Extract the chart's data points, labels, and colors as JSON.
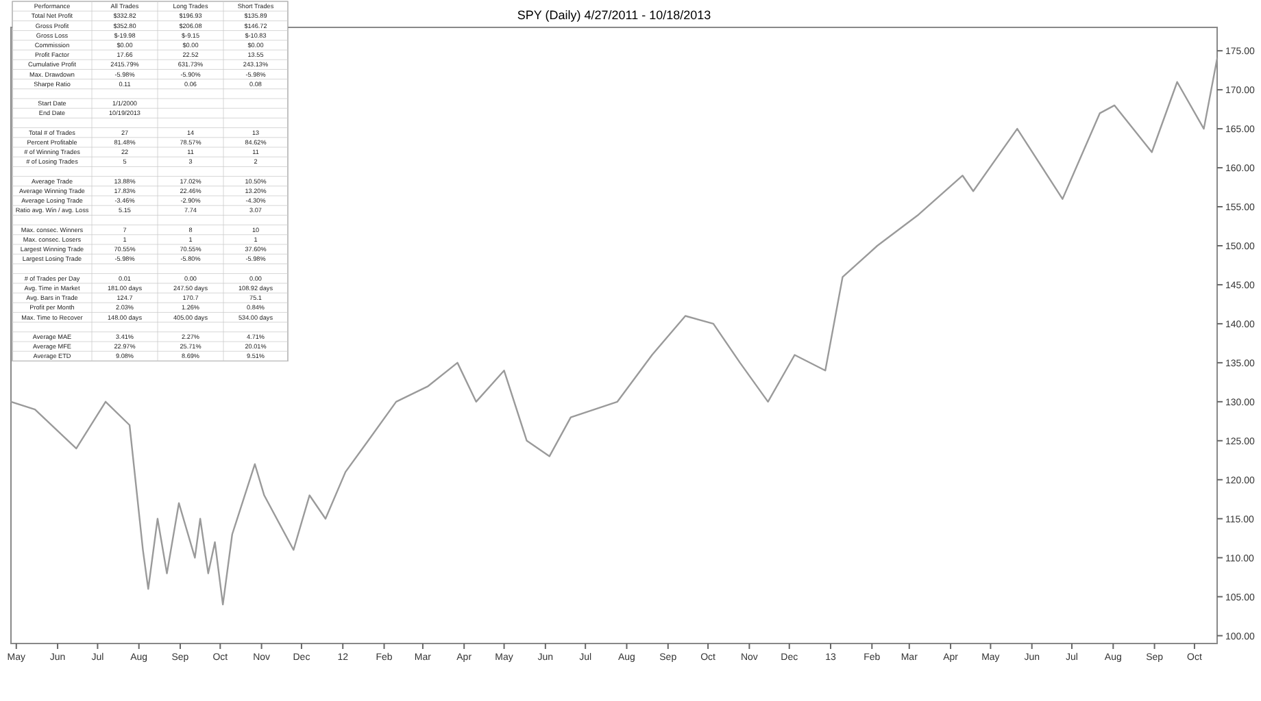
{
  "chart_data": [
    {
      "type": "line",
      "title": "SPY (Daily)  4/27/2011 - 10/18/2013",
      "grid": false,
      "marker": "none",
      "line_style": "solid",
      "series": [
        {
          "color": "#9a9a9a",
          "x": [
            "2011-04-27",
            "2011-05-15",
            "2011-06-15",
            "2011-07-07",
            "2011-07-25",
            "2011-08-04",
            "2011-08-08",
            "2011-08-15",
            "2011-08-22",
            "2011-08-31",
            "2011-09-12",
            "2011-09-16",
            "2011-09-22",
            "2011-09-27",
            "2011-10-03",
            "2011-10-10",
            "2011-10-27",
            "2011-11-03",
            "2011-11-25",
            "2011-12-07",
            "2011-12-19",
            "2012-01-03",
            "2012-01-20",
            "2012-02-10",
            "2012-03-05",
            "2012-03-27",
            "2012-04-10",
            "2012-05-01",
            "2012-05-18",
            "2012-06-04",
            "2012-06-20",
            "2012-07-25",
            "2012-08-20",
            "2012-09-14",
            "2012-10-05",
            "2012-10-25",
            "2012-11-15",
            "2012-12-05",
            "2012-12-28",
            "2013-01-10",
            "2013-02-05",
            "2013-03-08",
            "2013-04-10",
            "2013-04-18",
            "2013-05-21",
            "2013-06-24",
            "2013-07-22",
            "2013-08-02",
            "2013-08-30",
            "2013-09-18",
            "2013-10-08",
            "2013-10-18"
          ],
          "values": [
            130,
            129,
            124,
            130,
            127,
            111,
            106,
            115,
            108,
            117,
            110,
            115,
            108,
            112,
            104,
            113,
            122,
            118,
            111,
            118,
            115,
            121,
            125,
            130,
            132,
            135,
            130,
            134,
            125,
            123,
            128,
            130,
            136,
            141,
            140,
            135,
            130,
            136,
            134,
            146,
            150,
            154,
            159,
            157,
            165,
            156,
            167,
            168,
            162,
            171,
            165,
            174
          ]
        }
      ],
      "xlim": [
        "2011-04-27",
        "2013-10-18"
      ],
      "xticks": [
        {
          "value": "2011-05-01",
          "label": "May"
        },
        {
          "value": "2011-06-01",
          "label": "Jun"
        },
        {
          "value": "2011-07-01",
          "label": "Jul"
        },
        {
          "value": "2011-08-01",
          "label": "Aug"
        },
        {
          "value": "2011-09-01",
          "label": "Sep"
        },
        {
          "value": "2011-10-01",
          "label": "Oct"
        },
        {
          "value": "2011-11-01",
          "label": "Nov"
        },
        {
          "value": "2011-12-01",
          "label": "Dec"
        },
        {
          "value": "2012-01-01",
          "label": "12"
        },
        {
          "value": "2012-02-01",
          "label": "Feb"
        },
        {
          "value": "2012-03-01",
          "label": "Mar"
        },
        {
          "value": "2012-04-01",
          "label": "Apr"
        },
        {
          "value": "2012-05-01",
          "label": "May"
        },
        {
          "value": "2012-06-01",
          "label": "Jun"
        },
        {
          "value": "2012-07-01",
          "label": "Jul"
        },
        {
          "value": "2012-08-01",
          "label": "Aug"
        },
        {
          "value": "2012-09-01",
          "label": "Sep"
        },
        {
          "value": "2012-10-01",
          "label": "Oct"
        },
        {
          "value": "2012-11-01",
          "label": "Nov"
        },
        {
          "value": "2012-12-01",
          "label": "Dec"
        },
        {
          "value": "2013-01-01",
          "label": "13"
        },
        {
          "value": "2013-02-01",
          "label": "Feb"
        },
        {
          "value": "2013-03-01",
          "label": "Mar"
        },
        {
          "value": "2013-04-01",
          "label": "Apr"
        },
        {
          "value": "2013-05-01",
          "label": "May"
        },
        {
          "value": "2013-06-01",
          "label": "Jun"
        },
        {
          "value": "2013-07-01",
          "label": "Jul"
        },
        {
          "value": "2013-08-01",
          "label": "Aug"
        },
        {
          "value": "2013-09-01",
          "label": "Sep"
        },
        {
          "value": "2013-10-01",
          "label": "Oct"
        }
      ],
      "ylim": [
        99,
        178
      ],
      "yticks": [
        {
          "value": 100,
          "label": "100.00"
        },
        {
          "value": 105,
          "label": "105.00"
        },
        {
          "value": 110,
          "label": "110.00"
        },
        {
          "value": 115,
          "label": "115.00"
        },
        {
          "value": 120,
          "label": "120.00"
        },
        {
          "value": 125,
          "label": "125.00"
        },
        {
          "value": 130,
          "label": "130.00"
        },
        {
          "value": 135,
          "label": "135.00"
        },
        {
          "value": 140,
          "label": "140.00"
        },
        {
          "value": 145,
          "label": "145.00"
        },
        {
          "value": 150,
          "label": "150.00"
        },
        {
          "value": 155,
          "label": "155.00"
        },
        {
          "value": 160,
          "label": "160.00"
        },
        {
          "value": 165,
          "label": "165.00"
        },
        {
          "value": 170,
          "label": "170.00"
        },
        {
          "value": 175,
          "label": "175.00"
        }
      ]
    },
    {
      "type": "other",
      "title": "Performance",
      "categories": [
        "Total Net Profit",
        "Gross Profit",
        "Gross Loss",
        "Commission",
        "Profit Factor",
        "Cumulative Profit",
        "Max. Drawdown",
        "Sharpe Ratio",
        null,
        "Start Date",
        "End Date",
        null,
        "Total # of Trades",
        "Percent Profitable",
        "# of Winning Trades",
        "# of Losing Trades",
        null,
        "Average Trade",
        "Average Winning Trade",
        "Average Losing Trade",
        "Ratio avg. Win / avg. Loss",
        null,
        "Max. consec. Winners",
        "Max. consec. Losers",
        "Largest Winning Trade",
        "Largest Losing Trade",
        null,
        "# of Trades per Day",
        "Avg. Time in Market",
        "Avg. Bars in Trade",
        "Profit per Month",
        "Max. Time to Recover",
        null,
        "Average MAE",
        "Average MFE",
        "Average ETD"
      ],
      "series": [
        {
          "name": "All Trades",
          "values": [
            null,
            null,
            null,
            null,
            null,
            null,
            null,
            null,
            null,
            null,
            null,
            null,
            null,
            null,
            null,
            null,
            null,
            null,
            null,
            null,
            null,
            null,
            null,
            null,
            null,
            null,
            null,
            null,
            null,
            null,
            null,
            null,
            null,
            null,
            null,
            null
          ],
          "value_labels": [
            "$332.82",
            "$352.80",
            "$-19.98",
            "$0.00",
            "17.66",
            "2415.79%",
            "-5.98%",
            "0.11",
            null,
            "1/1/2000",
            "10/19/2013",
            null,
            "27",
            "81.48%",
            "22",
            "5",
            null,
            "13.88%",
            "17.83%",
            "-3.46%",
            "5.15",
            null,
            "7",
            "1",
            "70.55%",
            "-5.98%",
            null,
            "0.01",
            "181.00 days",
            "124.7",
            "2.03%",
            "148.00 days",
            null,
            "3.41%",
            "22.97%",
            "9.08%"
          ]
        },
        {
          "name": "Long Trades",
          "values": [
            null,
            null,
            null,
            null,
            null,
            null,
            null,
            null,
            null,
            null,
            null,
            null,
            null,
            null,
            null,
            null,
            null,
            null,
            null,
            null,
            null,
            null,
            null,
            null,
            null,
            null,
            null,
            null,
            null,
            null,
            null,
            null,
            null,
            null,
            null,
            null
          ],
          "value_labels": [
            "$196.93",
            "$206.08",
            "$-9.15",
            "$0.00",
            "22.52",
            "631.73%",
            "-5.90%",
            "0.06",
            null,
            null,
            null,
            null,
            "14",
            "78.57%",
            "11",
            "3",
            null,
            "17.02%",
            "22.46%",
            "-2.90%",
            "7.74",
            null,
            "8",
            "1",
            "70.55%",
            "-5.80%",
            null,
            "0.00",
            "247.50 days",
            "170.7",
            "1.26%",
            "405.00 days",
            null,
            "2.27%",
            "25.71%",
            "8.69%"
          ]
        },
        {
          "name": "Short Trades",
          "values": [
            null,
            null,
            null,
            null,
            null,
            null,
            null,
            null,
            null,
            null,
            null,
            null,
            null,
            null,
            null,
            null,
            null,
            null,
            null,
            null,
            null,
            null,
            null,
            null,
            null,
            null,
            null,
            null,
            null,
            null,
            null,
            null,
            null,
            null,
            null,
            null
          ],
          "value_labels": [
            "$135.89",
            "$146.72",
            "$-10.83",
            "$0.00",
            "13.55",
            "243.13%",
            "-5.98%",
            "0.08",
            null,
            null,
            null,
            null,
            "13",
            "84.62%",
            "11",
            "2",
            null,
            "10.50%",
            "13.20%",
            "-4.30%",
            "3.07",
            null,
            "10",
            "1",
            "37.60%",
            "-5.98%",
            null,
            "0.00",
            "108.92 days",
            "75.1",
            "0.84%",
            "534.00 days",
            null,
            "4.71%",
            "20.01%",
            "9.51%"
          ]
        }
      ]
    }
  ]
}
